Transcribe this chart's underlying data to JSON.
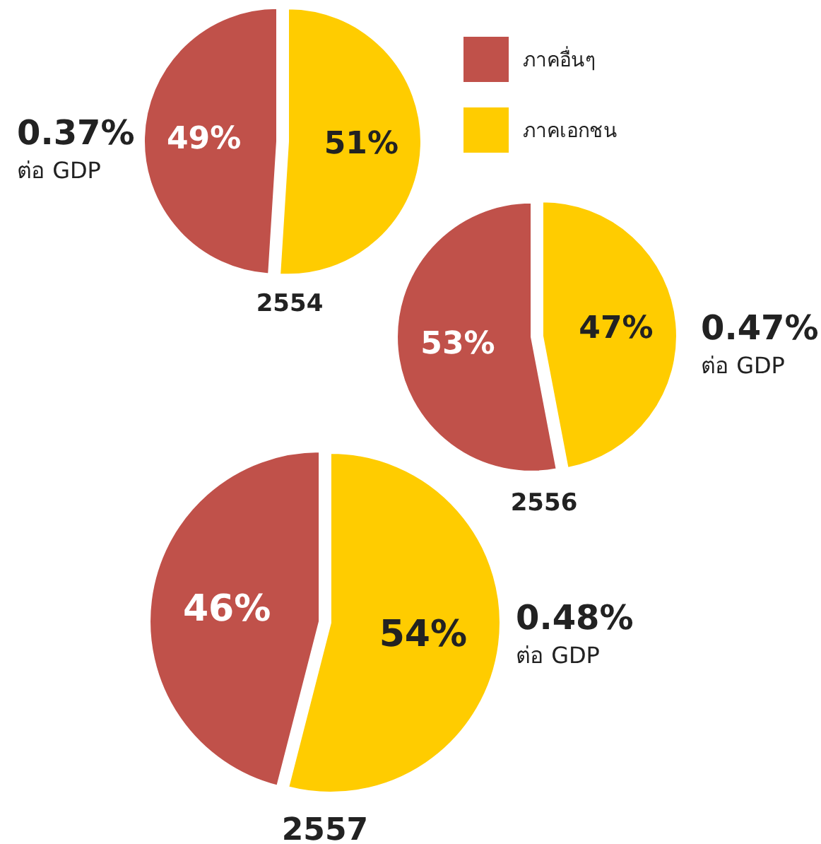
{
  "chart_data": [
    {
      "type": "pie",
      "title": "2554",
      "categories": [
        "ภาคอื่นๆ",
        "ภาคเอกชน"
      ],
      "values": [
        49,
        51
      ],
      "value_labels": [
        "49%",
        "51%"
      ],
      "colors": [
        "#c0514a",
        "#ffcc00"
      ],
      "legend": "right",
      "annotations": [
        "0.37%",
        "ต่อ GDP"
      ]
    },
    {
      "type": "pie",
      "title": "2556",
      "categories": [
        null,
        null
      ],
      "values": [
        53,
        47
      ],
      "value_labels": [
        "53%",
        "47%"
      ],
      "colors": [
        "#c0514a",
        "#ffcc00"
      ],
      "annotations": [
        "0.47%",
        "ต่อ GDP"
      ]
    },
    {
      "type": "pie",
      "title": "2557",
      "categories": [
        null,
        null
      ],
      "values": [
        46,
        54
      ],
      "value_labels": [
        "46%",
        "54%"
      ],
      "colors": [
        "#c0514a",
        "#ffcc00"
      ],
      "annotations": [
        "0.48%",
        "ต่อ GDP"
      ]
    }
  ]
}
